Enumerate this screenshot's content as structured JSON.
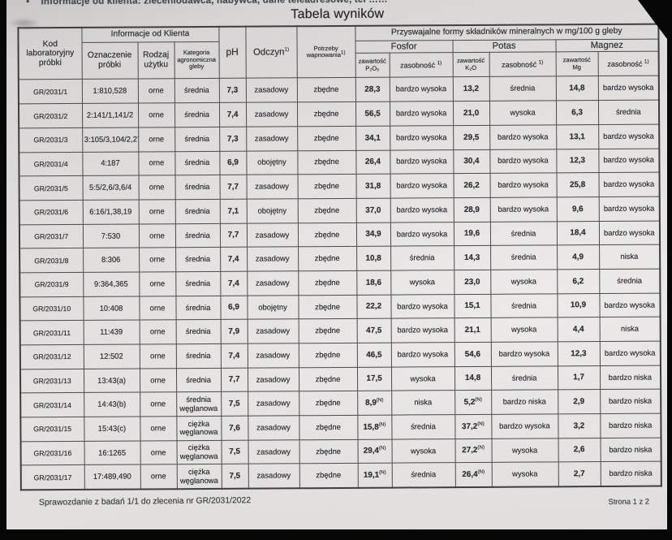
{
  "page": {
    "bullet": "•",
    "note": "Informacje od klienta: zleceniodawca, nabywca, dane teleadresowe, tel ……",
    "title": "Tabela wyników",
    "footer_left": "Sprawozdanie z badań 1/1 do zlecenia nr GR/2031/2022",
    "footer_right": "Strona 1 z 2"
  },
  "table": {
    "header": {
      "kod": "Kod laboratoryjny próbki",
      "info_klienta": "Informacje od Klienta",
      "oznaczenie": "Oznaczenie próbki",
      "rodzaj": "Rodzaj użytku",
      "kategoria": "Kategoria agronomiczna gleby",
      "ph": "pH",
      "odczyn": "Odczyn",
      "potrzeby": "Potrzeby wapnowania",
      "przyswajalne": "Przyswajalne formy składników mineralnych w mg/100 g gleby",
      "fosfor": "Fosfor",
      "potas": "Potas",
      "magnez": "Magnez",
      "zawartosc": "zawartość",
      "p2o5_formula": "P₂O₅",
      "k2o_formula": "K₂O",
      "mg_formula": "Mg",
      "zasobnosc": "zasobność",
      "footnote_mark": "1)"
    },
    "rows": [
      {
        "kod": "GR/2031/1",
        "oznaczenie": "1:810,528",
        "rodzaj_uzytku": "orne",
        "kategoria": "średnia",
        "ph": "7,3",
        "odczyn": "zasadowy",
        "potrzeby_wapnowania": "zbędne",
        "p2o5": "28,3",
        "fosfor_zasobnosc": "bardzo wysoka",
        "k2o": "13,2",
        "potas_zasobnosc": "średnia",
        "mg": "14,8",
        "magnez_zasobnosc": "bardzo wysoka"
      },
      {
        "kod": "GR/2031/2",
        "oznaczenie": "2:141/1,141/2",
        "rodzaj_uzytku": "orne",
        "kategoria": "średnia",
        "ph": "7,4",
        "odczyn": "zasadowy",
        "potrzeby_wapnowania": "zbędne",
        "p2o5": "56,5",
        "fosfor_zasobnosc": "bardzo wysoka",
        "k2o": "21,0",
        "potas_zasobnosc": "wysoka",
        "mg": "6,3",
        "magnez_zasobnosc": "średnia"
      },
      {
        "kod": "GR/2031/3",
        "oznaczenie": "3:105/3,104/2,273/1",
        "rodzaj_uzytku": "orne",
        "kategoria": "średnia",
        "ph": "7,3",
        "odczyn": "zasadowy",
        "potrzeby_wapnowania": "zbędne",
        "p2o5": "34,1",
        "fosfor_zasobnosc": "bardzo wysoka",
        "k2o": "29,5",
        "potas_zasobnosc": "bardzo wysoka",
        "mg": "13,1",
        "magnez_zasobnosc": "bardzo wysoka"
      },
      {
        "kod": "GR/2031/4",
        "oznaczenie": "4:187",
        "rodzaj_uzytku": "orne",
        "kategoria": "średnia",
        "ph": "6,9",
        "odczyn": "obojętny",
        "potrzeby_wapnowania": "zbędne",
        "p2o5": "26,4",
        "fosfor_zasobnosc": "bardzo wysoka",
        "k2o": "30,4",
        "potas_zasobnosc": "bardzo wysoka",
        "mg": "12,3",
        "magnez_zasobnosc": "bardzo wysoka"
      },
      {
        "kod": "GR/2031/5",
        "oznaczenie": "5:5/2,6/3,6/4",
        "rodzaj_uzytku": "orne",
        "kategoria": "średnia",
        "ph": "7,7",
        "odczyn": "zasadowy",
        "potrzeby_wapnowania": "zbędne",
        "p2o5": "31,8",
        "fosfor_zasobnosc": "bardzo wysoka",
        "k2o": "26,2",
        "potas_zasobnosc": "bardzo wysoka",
        "mg": "25,8",
        "magnez_zasobnosc": "bardzo wysoka"
      },
      {
        "kod": "GR/2031/6",
        "oznaczenie": "6:16/1,38,19",
        "rodzaj_uzytku": "orne",
        "kategoria": "średnia",
        "ph": "7,1",
        "odczyn": "obojętny",
        "potrzeby_wapnowania": "zbędne",
        "p2o5": "37,0",
        "fosfor_zasobnosc": "bardzo wysoka",
        "k2o": "28,9",
        "potas_zasobnosc": "bardzo wysoka",
        "mg": "9,6",
        "magnez_zasobnosc": "bardzo wysoka"
      },
      {
        "kod": "GR/2031/7",
        "oznaczenie": "7:530",
        "rodzaj_uzytku": "orne",
        "kategoria": "średnia",
        "ph": "7,7",
        "odczyn": "zasadowy",
        "potrzeby_wapnowania": "zbędne",
        "p2o5": "34,9",
        "fosfor_zasobnosc": "bardzo wysoka",
        "k2o": "19,6",
        "potas_zasobnosc": "średnia",
        "mg": "18,4",
        "magnez_zasobnosc": "bardzo wysoka"
      },
      {
        "kod": "GR/2031/8",
        "oznaczenie": "8:306",
        "rodzaj_uzytku": "orne",
        "kategoria": "średnia",
        "ph": "7,4",
        "odczyn": "zasadowy",
        "potrzeby_wapnowania": "zbędne",
        "p2o5": "10,8",
        "fosfor_zasobnosc": "średnia",
        "k2o": "14,3",
        "potas_zasobnosc": "średnia",
        "mg": "4,9",
        "magnez_zasobnosc": "niska"
      },
      {
        "kod": "GR/2031/9",
        "oznaczenie": "9:364,365",
        "rodzaj_uzytku": "orne",
        "kategoria": "średnia",
        "ph": "7,4",
        "odczyn": "zasadowy",
        "potrzeby_wapnowania": "zbędne",
        "p2o5": "18,6",
        "fosfor_zasobnosc": "wysoka",
        "k2o": "23,0",
        "potas_zasobnosc": "wysoka",
        "mg": "6,2",
        "magnez_zasobnosc": "średnia"
      },
      {
        "kod": "GR/2031/10",
        "oznaczenie": "10:408",
        "rodzaj_uzytku": "orne",
        "kategoria": "średnia",
        "ph": "6,9",
        "odczyn": "obojętny",
        "potrzeby_wapnowania": "zbędne",
        "p2o5": "22,2",
        "fosfor_zasobnosc": "bardzo wysoka",
        "k2o": "15,1",
        "potas_zasobnosc": "średnia",
        "mg": "10,9",
        "magnez_zasobnosc": "bardzo wysoka"
      },
      {
        "kod": "GR/2031/11",
        "oznaczenie": "11:439",
        "rodzaj_uzytku": "orne",
        "kategoria": "średnia",
        "ph": "7,9",
        "odczyn": "zasadowy",
        "potrzeby_wapnowania": "zbędne",
        "p2o5": "47,5",
        "fosfor_zasobnosc": "bardzo wysoka",
        "k2o": "21,1",
        "potas_zasobnosc": "wysoka",
        "mg": "4,4",
        "magnez_zasobnosc": "niska"
      },
      {
        "kod": "GR/2031/12",
        "oznaczenie": "12:502",
        "rodzaj_uzytku": "orne",
        "kategoria": "średnia",
        "ph": "7,4",
        "odczyn": "zasadowy",
        "potrzeby_wapnowania": "zbędne",
        "p2o5": "46,5",
        "fosfor_zasobnosc": "bardzo wysoka",
        "k2o": "54,6",
        "potas_zasobnosc": "bardzo wysoka",
        "mg": "12,3",
        "magnez_zasobnosc": "bardzo wysoka"
      },
      {
        "kod": "GR/2031/13",
        "oznaczenie": "13:43(a)",
        "rodzaj_uzytku": "orne",
        "kategoria": "średnia",
        "ph": "7,7",
        "odczyn": "zasadowy",
        "potrzeby_wapnowania": "zbędne",
        "p2o5": "17,5",
        "fosfor_zasobnosc": "wysoka",
        "k2o": "14,8",
        "potas_zasobnosc": "średnia",
        "mg": "1,7",
        "magnez_zasobnosc": "bardzo niska"
      },
      {
        "kod": "GR/2031/14",
        "oznaczenie": "14:43(b)",
        "rodzaj_uzytku": "orne",
        "kategoria": "średnia węglanowa",
        "ph": "7,5",
        "odczyn": "zasadowy",
        "potrzeby_wapnowania": "zbędne",
        "p2o5": "8,9",
        "p2o5_mark": "(N)",
        "fosfor_zasobnosc": "niska",
        "k2o": "5,2",
        "k2o_mark": "(N)",
        "potas_zasobnosc": "bardzo niska",
        "mg": "2,9",
        "magnez_zasobnosc": "bardzo niska"
      },
      {
        "kod": "GR/2031/15",
        "oznaczenie": "15:43(c)",
        "rodzaj_uzytku": "orne",
        "kategoria": "ciężka węglanowa",
        "ph": "7,6",
        "odczyn": "zasadowy",
        "potrzeby_wapnowania": "zbędne",
        "p2o5": "15,8",
        "p2o5_mark": "(N)",
        "fosfor_zasobnosc": "średnia",
        "k2o": "37,2",
        "k2o_mark": "(N)",
        "potas_zasobnosc": "bardzo wysoka",
        "mg": "3,2",
        "magnez_zasobnosc": "bardzo niska"
      },
      {
        "kod": "GR/2031/16",
        "oznaczenie": "16:1265",
        "rodzaj_uzytku": "orne",
        "kategoria": "ciężka węglanowa",
        "ph": "7,5",
        "odczyn": "zasadowy",
        "potrzeby_wapnowania": "zbędne",
        "p2o5": "29,4",
        "p2o5_mark": "(N)",
        "fosfor_zasobnosc": "wysoka",
        "k2o": "27,2",
        "k2o_mark": "(N)",
        "potas_zasobnosc": "wysoka",
        "mg": "2,6",
        "magnez_zasobnosc": "bardzo niska"
      },
      {
        "kod": "GR/2031/17",
        "oznaczenie": "17:489,490",
        "rodzaj_uzytku": "orne",
        "kategoria": "ciężka węglanowa",
        "ph": "7,5",
        "odczyn": "zasadowy",
        "potrzeby_wapnowania": "zbędne",
        "p2o5": "19,1",
        "p2o5_mark": "(N)",
        "fosfor_zasobnosc": "średnia",
        "k2o": "26,4",
        "k2o_mark": "(N)",
        "potas_zasobnosc": "wysoka",
        "mg": "2,7",
        "magnez_zasobnosc": "bardzo niska"
      }
    ]
  }
}
